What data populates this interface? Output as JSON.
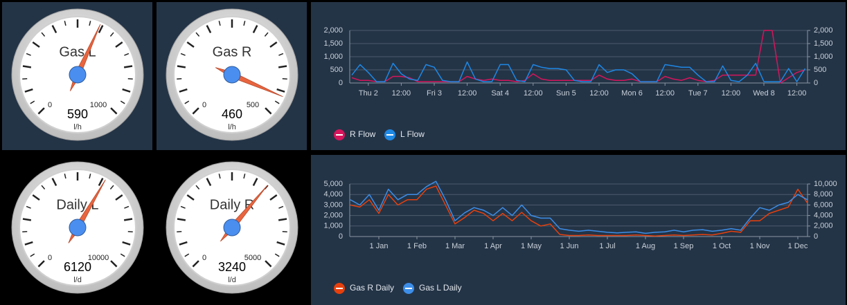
{
  "chart_data": [
    {
      "type": "gauge",
      "title": "Gas L",
      "value": 590,
      "unit": "l/h",
      "min": 0,
      "max": 1000
    },
    {
      "type": "gauge",
      "title": "Gas R",
      "value": 460,
      "unit": "l/h",
      "min": 0,
      "max": 500
    },
    {
      "type": "gauge",
      "title": "Daily L",
      "value": 6120,
      "unit": "l/d",
      "min": 0,
      "max": 10000
    },
    {
      "type": "gauge",
      "title": "Daily R",
      "value": 3240,
      "unit": "l/d",
      "min": 0,
      "max": 5000
    },
    {
      "type": "line",
      "categories": [
        null,
        null,
        "Thu 2",
        null,
        null,
        null,
        "12:00",
        null,
        null,
        null,
        "Fri 3",
        null,
        null,
        null,
        "12:00",
        null,
        null,
        null,
        "Sat 4",
        null,
        null,
        null,
        "12:00",
        null,
        null,
        null,
        "Sun 5",
        null,
        null,
        null,
        "12:00",
        null,
        null,
        null,
        "Mon 6",
        null,
        null,
        null,
        "12:00",
        null,
        null,
        null,
        "Tue 7",
        null,
        null,
        null,
        "12:00",
        null,
        null,
        null,
        "Wed 8",
        null,
        null,
        null,
        "12:00",
        null
      ],
      "ylim": [
        0,
        2000
      ],
      "yticks": [
        0,
        500,
        {
          "value": 1000,
          "label": "1,000"
        },
        {
          "value": 1500,
          "label": "1,500"
        },
        {
          "value": 2000,
          "label": "2,000"
        }
      ],
      "y2lim": [
        0,
        2000
      ],
      "y2ticks": [
        0,
        500,
        {
          "value": 1000,
          "label": "1,000"
        },
        {
          "value": 1500,
          "label": "1,500"
        },
        {
          "value": 2000,
          "label": "2,000"
        }
      ],
      "grid": true,
      "series": [
        {
          "name": "R Flow",
          "color": "#d8145c",
          "values": [
            200,
            100,
            100,
            50,
            50,
            250,
            250,
            200,
            50,
            50,
            50,
            50,
            50,
            50,
            250,
            150,
            100,
            150,
            100,
            100,
            50,
            100,
            350,
            150,
            100,
            100,
            100,
            100,
            100,
            100,
            300,
            150,
            100,
            100,
            150,
            50,
            50,
            50,
            250,
            150,
            100,
            200,
            100,
            50,
            100,
            300,
            300,
            300,
            300,
            300,
            2000,
            2000,
            0,
            200,
            400,
            500
          ]
        },
        {
          "name": "L Flow",
          "color": "#1e88e5",
          "values": [
            300,
            700,
            400,
            50,
            50,
            750,
            350,
            150,
            100,
            700,
            600,
            100,
            50,
            50,
            800,
            150,
            50,
            50,
            700,
            700,
            100,
            50,
            700,
            600,
            550,
            550,
            500,
            100,
            50,
            50,
            700,
            400,
            500,
            500,
            350,
            50,
            50,
            50,
            700,
            650,
            600,
            600,
            300,
            50,
            50,
            650,
            100,
            50,
            300,
            750,
            50,
            50,
            50,
            550,
            50,
            550
          ]
        }
      ]
    },
    {
      "type": "line",
      "categories": [
        null,
        null,
        null,
        "1 Jan",
        null,
        null,
        null,
        "1 Feb",
        null,
        null,
        null,
        "1 Mar",
        null,
        null,
        null,
        "1 Apr",
        null,
        null,
        null,
        "1 May",
        null,
        null,
        null,
        "1 Jun",
        null,
        null,
        null,
        "1 Jul",
        null,
        null,
        null,
        "1 Aug",
        null,
        null,
        null,
        "1 Sep",
        null,
        null,
        null,
        "1 Oct",
        null,
        null,
        null,
        "1 Nov",
        null,
        null,
        null,
        "1 Dec",
        null
      ],
      "ylim": [
        0,
        5000
      ],
      "yticks": [
        0,
        {
          "value": 1000,
          "label": "1,000"
        },
        {
          "value": 2000,
          "label": "2,000"
        },
        {
          "value": 3000,
          "label": "3,000"
        },
        {
          "value": 4000,
          "label": "4,000"
        },
        {
          "value": 5000,
          "label": "5,000"
        }
      ],
      "y2lim": [
        0,
        10000
      ],
      "y2ticks": [
        0,
        {
          "value": 2000,
          "label": "2,000"
        },
        {
          "value": 4000,
          "label": "4,000"
        },
        {
          "value": 6000,
          "label": "6,000"
        },
        {
          "value": 8000,
          "label": "8,000"
        },
        {
          "value": 10000,
          "label": "10,000"
        }
      ],
      "grid": true,
      "series": [
        {
          "name": "Gas R Daily",
          "color": "#e8400c",
          "values": [
            3000,
            2800,
            3500,
            2200,
            4000,
            3000,
            3500,
            3500,
            4500,
            4800,
            3000,
            1200,
            1800,
            2500,
            2200,
            1500,
            2200,
            1500,
            2300,
            1500,
            1000,
            1200,
            200,
            100,
            100,
            150,
            100,
            100,
            100,
            100,
            150,
            100,
            50,
            100,
            150,
            100,
            150,
            200,
            150,
            300,
            500,
            400,
            1500,
            1500,
            2200,
            2500,
            2800,
            4500,
            3200
          ]
        },
        {
          "name": "Gas L Daily",
          "color": "#3d8ee8",
          "axis": "y2",
          "values": [
            7000,
            6000,
            8000,
            5000,
            9000,
            7000,
            8000,
            8000,
            9500,
            10500,
            7000,
            3000,
            4500,
            5500,
            5000,
            4000,
            5500,
            4000,
            6000,
            4000,
            3500,
            3500,
            1500,
            1200,
            1000,
            1200,
            1000,
            800,
            700,
            800,
            900,
            600,
            800,
            900,
            1200,
            900,
            1200,
            1300,
            1000,
            1200,
            1500,
            1200,
            3500,
            5500,
            5000,
            6000,
            6500,
            8000,
            7000
          ]
        }
      ]
    }
  ]
}
